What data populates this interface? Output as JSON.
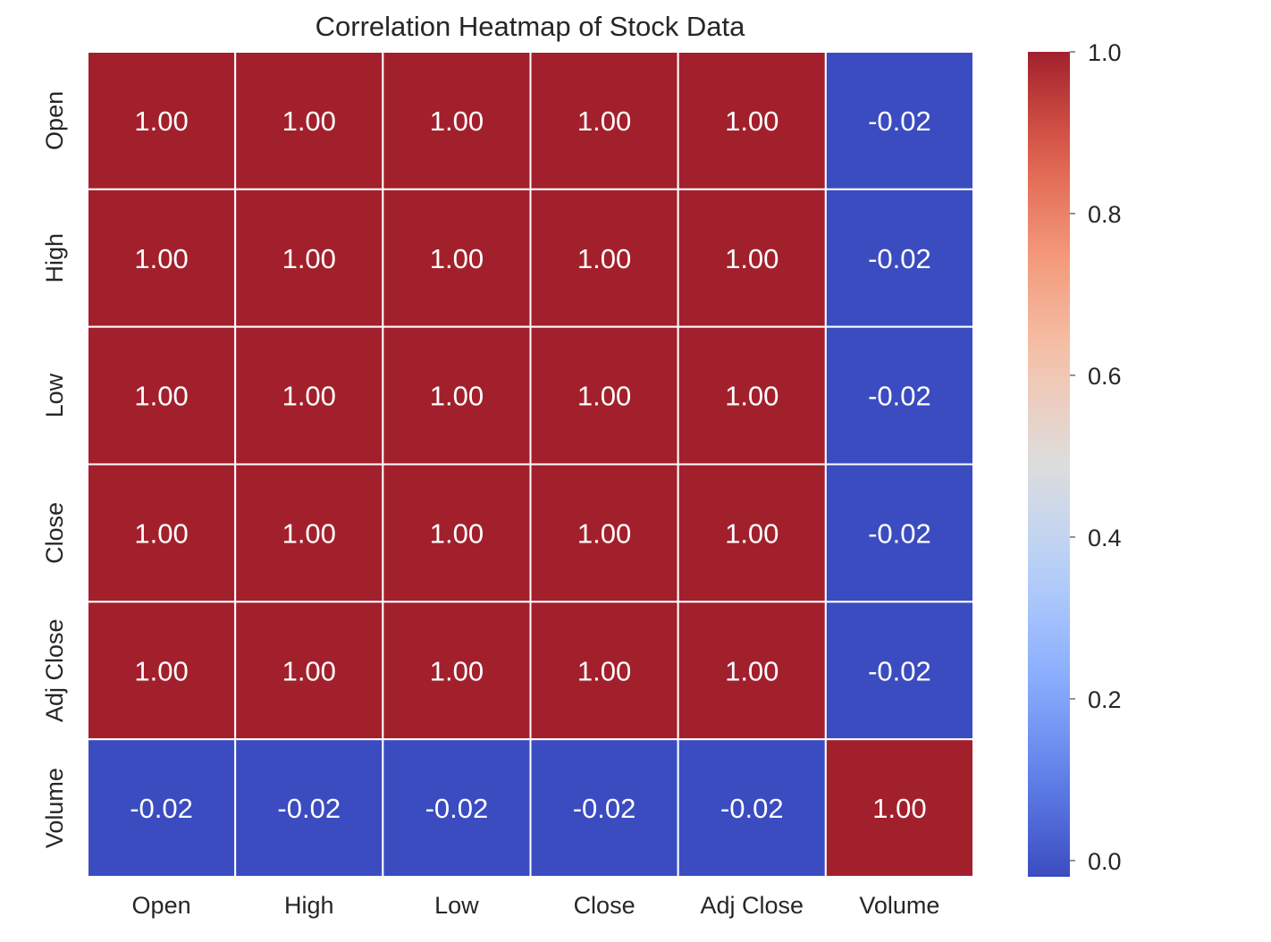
{
  "chart_data": {
    "type": "heatmap",
    "title": "Correlation Heatmap of Stock Data",
    "xlabel": "",
    "ylabel": "",
    "columns": [
      "Open",
      "High",
      "Low",
      "Close",
      "Adj Close",
      "Volume"
    ],
    "rows": [
      "Open",
      "High",
      "Low",
      "Close",
      "Adj Close",
      "Volume"
    ],
    "values": [
      [
        1.0,
        1.0,
        1.0,
        1.0,
        1.0,
        -0.02
      ],
      [
        1.0,
        1.0,
        1.0,
        1.0,
        1.0,
        -0.02
      ],
      [
        1.0,
        1.0,
        1.0,
        1.0,
        1.0,
        -0.02
      ],
      [
        1.0,
        1.0,
        1.0,
        1.0,
        1.0,
        -0.02
      ],
      [
        1.0,
        1.0,
        1.0,
        1.0,
        1.0,
        -0.02
      ],
      [
        -0.02,
        -0.02,
        -0.02,
        -0.02,
        -0.02,
        1.0
      ]
    ],
    "annotations": [
      [
        "1.00",
        "1.00",
        "1.00",
        "1.00",
        "1.00",
        "-0.02"
      ],
      [
        "1.00",
        "1.00",
        "1.00",
        "1.00",
        "1.00",
        "-0.02"
      ],
      [
        "1.00",
        "1.00",
        "1.00",
        "1.00",
        "1.00",
        "-0.02"
      ],
      [
        "1.00",
        "1.00",
        "1.00",
        "1.00",
        "1.00",
        "-0.02"
      ],
      [
        "1.00",
        "1.00",
        "1.00",
        "1.00",
        "1.00",
        "-0.02"
      ],
      [
        "-0.02",
        "-0.02",
        "-0.02",
        "-0.02",
        "-0.02",
        "1.00"
      ]
    ],
    "colormap": "coolwarm",
    "colorbar": {
      "min": -0.02,
      "max": 1.0,
      "ticks": [
        0.0,
        0.2,
        0.4,
        0.6,
        0.8,
        1.0
      ],
      "tick_labels": [
        "0.0",
        "0.2",
        "0.4",
        "0.6",
        "0.8",
        "1.0"
      ],
      "placement": "right"
    },
    "colors": {
      "high": "#a2202c",
      "low": "#3b4cc0",
      "grid_line": "#ffffff"
    }
  }
}
